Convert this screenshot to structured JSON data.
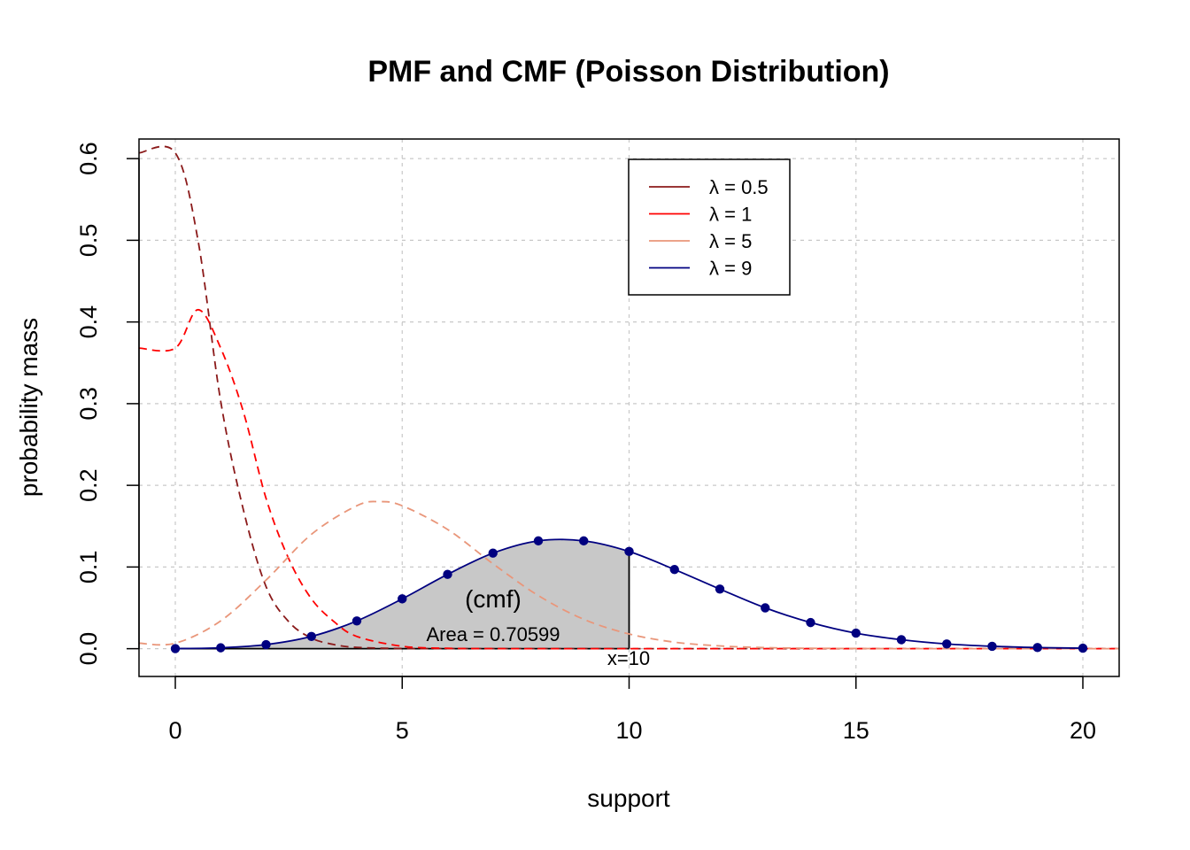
{
  "chart_data": {
    "type": "line",
    "title": "PMF and CMF (Poisson Distribution)",
    "xlabel": "support",
    "ylabel": "probability mass",
    "xlim": [
      -0.8,
      20.8
    ],
    "ylim": [
      -0.034,
      0.624
    ],
    "x_ticks": [
      0,
      5,
      10,
      15,
      20
    ],
    "y_ticks": [
      0.0,
      0.1,
      0.2,
      0.3,
      0.4,
      0.5,
      0.6
    ],
    "x_tick_labels": [
      "0",
      "5",
      "10",
      "15",
      "20"
    ],
    "y_tick_labels": [
      "0.0",
      "0.1",
      "0.2",
      "0.3",
      "0.4",
      "0.5",
      "0.6"
    ],
    "grid": true,
    "legend_position": "top-right",
    "series": [
      {
        "name": "λ = 0.5",
        "lambda": 0.5,
        "color": "#8B1A1A",
        "style": "dashed",
        "markers": false,
        "x": [
          0,
          0.5,
          1,
          1.5,
          2,
          2.5,
          3,
          3.5,
          4,
          5,
          6,
          8,
          10,
          12,
          14,
          16,
          18,
          20
        ],
        "y": [
          0.607,
          0.5,
          0.303,
          0.17,
          0.076,
          0.033,
          0.013,
          0.005,
          0.0016,
          0.0002,
          0.0,
          0.0,
          0.0,
          0.0,
          0.0,
          0.0,
          0.0,
          0.0
        ]
      },
      {
        "name": "λ = 1",
        "lambda": 1,
        "color": "#FF0000",
        "style": "dashed",
        "markers": false,
        "x": [
          0,
          0.5,
          1,
          1.5,
          2,
          2.5,
          3,
          3.5,
          4,
          5,
          6,
          7,
          8,
          10,
          12,
          14,
          16,
          18,
          20
        ],
        "y": [
          0.368,
          0.415,
          0.368,
          0.29,
          0.184,
          0.11,
          0.061,
          0.033,
          0.015,
          0.003,
          0.0005,
          0.0001,
          0.0,
          0.0,
          0.0,
          0.0,
          0.0,
          0.0,
          0.0
        ]
      },
      {
        "name": "λ = 5",
        "lambda": 5,
        "color": "#E9967A",
        "style": "dashed",
        "markers": false,
        "x": [
          0,
          1,
          2,
          3,
          4,
          4.5,
          5,
          6,
          7,
          8,
          9,
          10,
          11,
          12,
          13,
          14,
          15,
          16,
          17,
          18,
          19,
          20
        ],
        "y": [
          0.0067,
          0.034,
          0.084,
          0.14,
          0.175,
          0.18,
          0.175,
          0.146,
          0.104,
          0.065,
          0.036,
          0.018,
          0.008,
          0.0034,
          0.0013,
          0.0005,
          0.0002,
          0.0,
          0.0,
          0.0,
          0.0,
          0.0
        ]
      },
      {
        "name": "λ = 9",
        "lambda": 9,
        "color": "#000080",
        "style": "solid",
        "markers": true,
        "x": [
          0,
          1,
          2,
          3,
          4,
          5,
          6,
          7,
          8,
          9,
          10,
          11,
          12,
          13,
          14,
          15,
          16,
          17,
          18,
          19,
          20
        ],
        "y": [
          0.0001,
          0.0011,
          0.005,
          0.015,
          0.034,
          0.061,
          0.091,
          0.117,
          0.132,
          0.132,
          0.119,
          0.097,
          0.073,
          0.05,
          0.032,
          0.019,
          0.011,
          0.0058,
          0.0029,
          0.0014,
          0.0006
        ]
      }
    ],
    "shaded_region": {
      "series": "λ = 9",
      "x_from": 0,
      "x_to": 10,
      "fill": "#C8C8C8"
    },
    "annotations": {
      "cmf_label": "(cmf)",
      "area_label": "Area = 0.70599",
      "x_marker_label": "x=10"
    }
  }
}
